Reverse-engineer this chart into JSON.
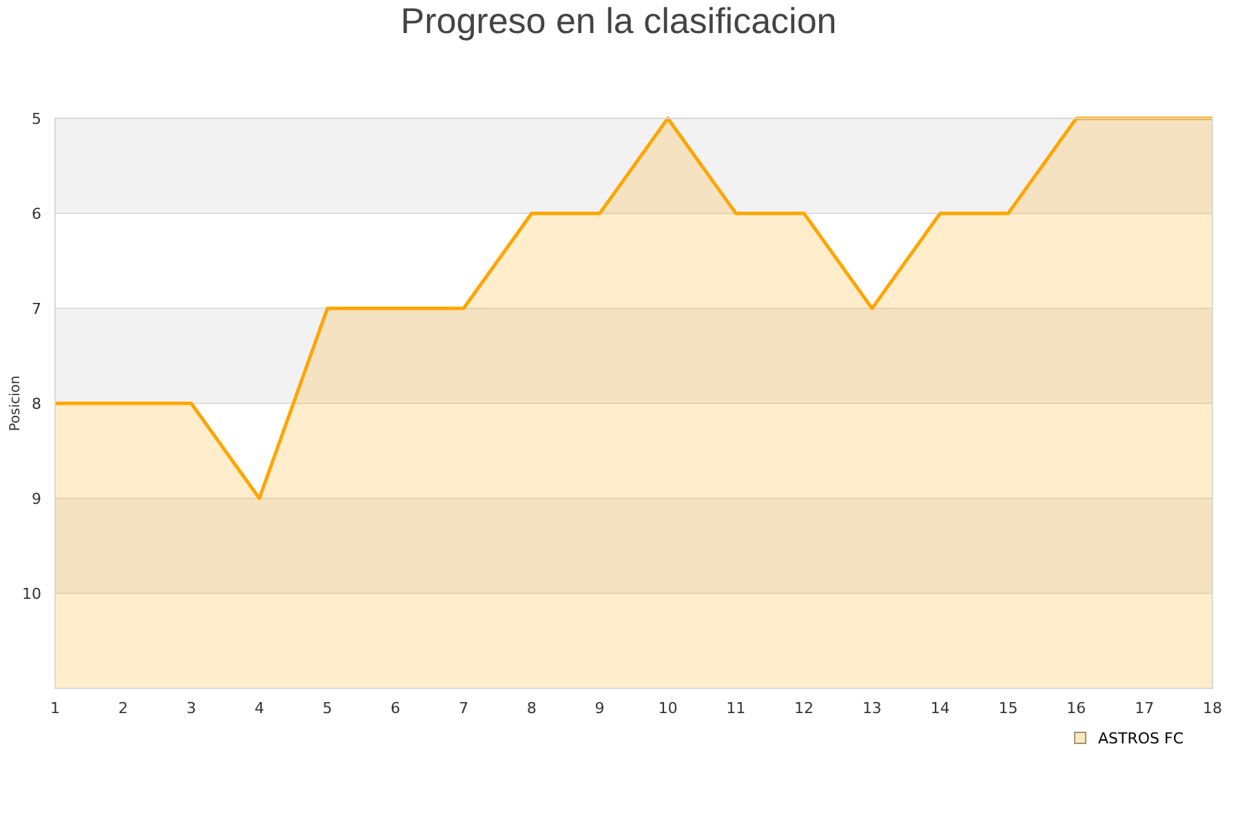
{
  "chart_data": {
    "type": "area",
    "title": "Progreso en la clasificacion",
    "ylabel": "Posicion",
    "x": [
      1,
      2,
      3,
      4,
      5,
      6,
      7,
      8,
      9,
      10,
      11,
      12,
      13,
      14,
      15,
      16,
      17,
      18
    ],
    "series": [
      {
        "name": "ASTROS FC",
        "color": "#ffa500",
        "values": [
          8,
          8,
          8,
          9,
          7,
          7,
          7,
          6,
          6,
          5,
          6,
          6,
          7,
          6,
          6,
          5,
          5,
          5
        ]
      }
    ],
    "xlim": [
      1,
      18
    ],
    "xticks": [
      1,
      2,
      3,
      4,
      5,
      6,
      7,
      8,
      9,
      10,
      11,
      12,
      13,
      14,
      15,
      16,
      17,
      18
    ],
    "ylim": [
      11,
      5
    ],
    "yticks": [
      5,
      6,
      7,
      8,
      9,
      10
    ],
    "bands": [
      {
        "axis": "y",
        "from": 5,
        "to": 6,
        "color": "#f2f2f2"
      },
      {
        "axis": "y",
        "from": 7,
        "to": 8,
        "color": "#f2f2f2"
      },
      {
        "axis": "y",
        "from": 9,
        "to": 10,
        "color": "#f2f2f2"
      }
    ],
    "grid": "y",
    "legend": "bottom right",
    "line_style": "solid"
  }
}
